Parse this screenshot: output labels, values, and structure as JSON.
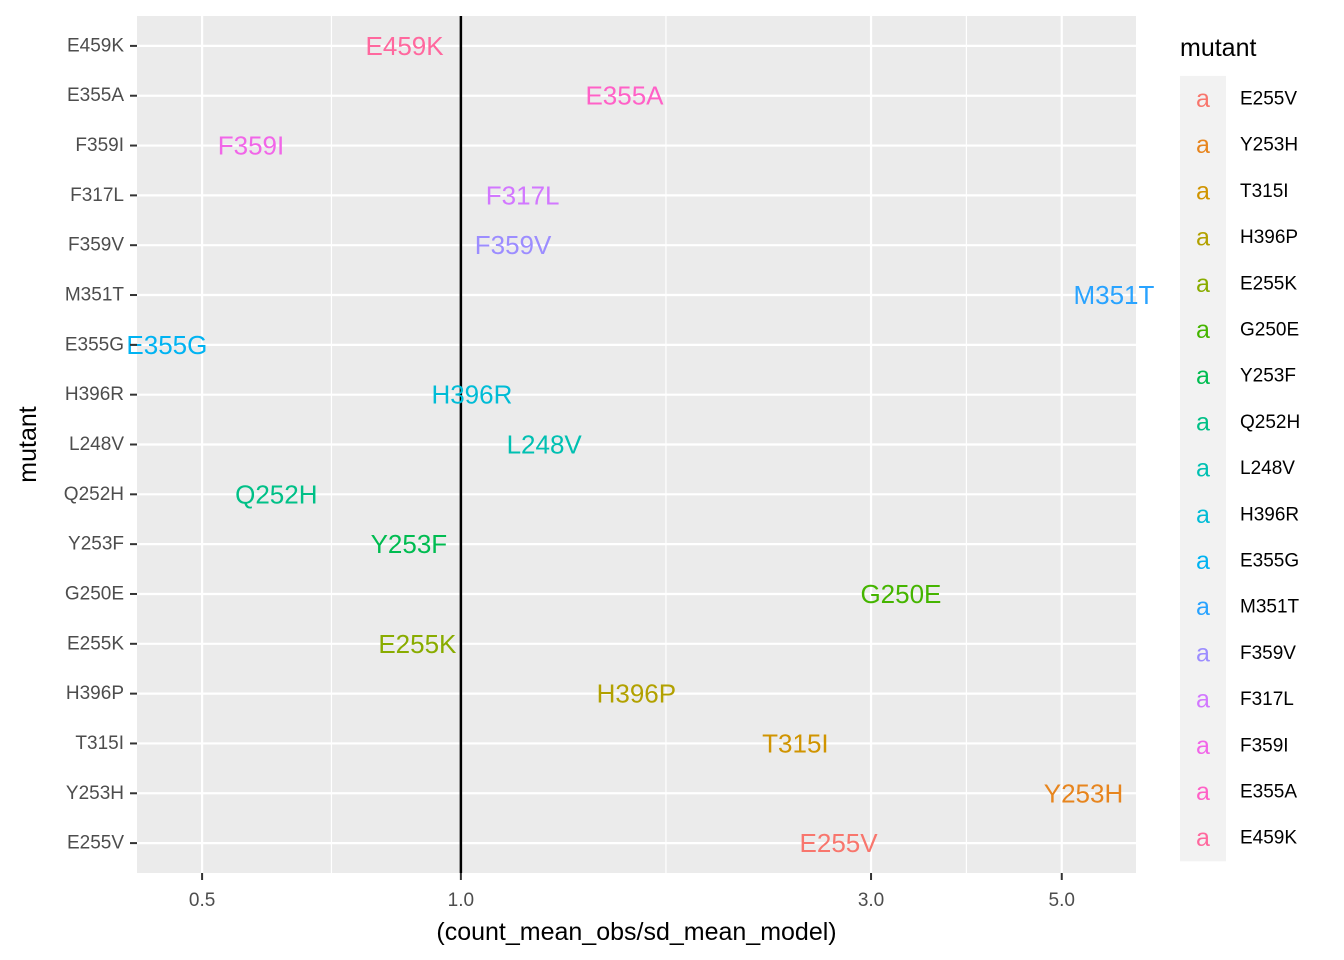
{
  "chart_data": {
    "type": "scatter",
    "subtype": "text-labels",
    "xscale": "log10",
    "xlabel": "(count_mean_obs/sd_mean_model)",
    "ylabel": "mutant",
    "xlim": [
      0.42,
      6.1
    ],
    "x_ticks": [
      {
        "value": 0.5,
        "label": "0.5"
      },
      {
        "value": 1.0,
        "label": "1.0"
      },
      {
        "value": 3.0,
        "label": "3.0"
      },
      {
        "value": 5.0,
        "label": "5.0"
      }
    ],
    "x_minor_ticks": [
      0.707,
      1.732,
      3.873
    ],
    "reference_line": {
      "x": 1.0,
      "color": "#000000"
    },
    "categories": [
      "E255V",
      "Y253H",
      "T315I",
      "H396P",
      "E255K",
      "G250E",
      "Y253F",
      "Q252H",
      "L248V",
      "H396R",
      "E355G",
      "M351T",
      "F359V",
      "F317L",
      "F359I",
      "E355A",
      "E459K"
    ],
    "points": [
      {
        "mutant": "E255V",
        "x": 2.75,
        "color": "#F8766D"
      },
      {
        "mutant": "Y253H",
        "x": 5.3,
        "color": "#E7851E"
      },
      {
        "mutant": "T315I",
        "x": 2.45,
        "color": "#D09400"
      },
      {
        "mutant": "H396P",
        "x": 1.6,
        "color": "#B2A100"
      },
      {
        "mutant": "E255K",
        "x": 0.89,
        "color": "#89AC00"
      },
      {
        "mutant": "G250E",
        "x": 3.25,
        "color": "#45B500"
      },
      {
        "mutant": "Y253F",
        "x": 0.87,
        "color": "#00BC51"
      },
      {
        "mutant": "Q252H",
        "x": 0.61,
        "color": "#00C087"
      },
      {
        "mutant": "L248V",
        "x": 1.25,
        "color": "#00C0B2"
      },
      {
        "mutant": "H396R",
        "x": 1.03,
        "color": "#00BCD6"
      },
      {
        "mutant": "E355G",
        "x": 0.455,
        "color": "#00B3F2"
      },
      {
        "mutant": "M351T",
        "x": 5.75,
        "color": "#29A3FF"
      },
      {
        "mutant": "F359V",
        "x": 1.15,
        "color": "#9C8DFF"
      },
      {
        "mutant": "F317L",
        "x": 1.18,
        "color": "#D277FF"
      },
      {
        "mutant": "F359I",
        "x": 0.57,
        "color": "#F166E8"
      },
      {
        "mutant": "E355A",
        "x": 1.55,
        "color": "#FF61C7"
      },
      {
        "mutant": "E459K",
        "x": 0.86,
        "color": "#FF689E"
      }
    ],
    "legend": {
      "title": "mutant",
      "key_glyph": "a",
      "position": "right",
      "entries": [
        "E255V",
        "Y253H",
        "T315I",
        "H396P",
        "E255K",
        "G250E",
        "Y253F",
        "Q252H",
        "L248V",
        "H396R",
        "E355G",
        "M351T",
        "F359V",
        "F317L",
        "F359I",
        "E355A",
        "E459K"
      ]
    },
    "colors": {
      "panel_background": "#EBEBEB",
      "grid": "#FFFFFF",
      "legend_key_background": "#F2F2F2"
    }
  }
}
